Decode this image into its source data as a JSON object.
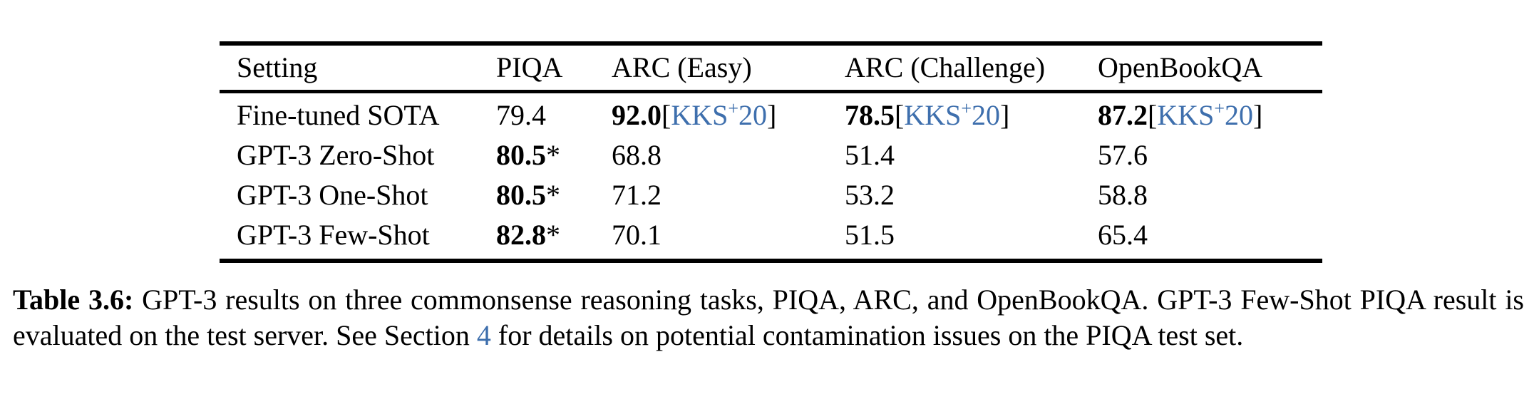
{
  "colors": {
    "text": "#000000",
    "citation_blue": "#3e6fad",
    "rule_black": "#000000",
    "background": "#ffffff"
  },
  "table": {
    "headers": {
      "setting": "Setting",
      "piqa": "PIQA",
      "arc_easy": "ARC (Easy)",
      "arc_challenge": "ARC (Challenge)",
      "openbookqa": "OpenBookQA"
    },
    "symbols": {
      "open_bracket": "[",
      "close_bracket": "]",
      "star": "*"
    },
    "citation": {
      "pre": "KKS",
      "sup": "+",
      "post": "20"
    },
    "rows": [
      {
        "setting": "Fine-tuned SOTA",
        "piqa": "79.4",
        "arc_easy": "92.0",
        "arc_challenge": "78.5",
        "openbookqa": "87.2"
      },
      {
        "setting": "GPT-3 Zero-Shot",
        "piqa": "80.5",
        "arc_easy": "68.8",
        "arc_challenge": "51.4",
        "openbookqa": "57.6"
      },
      {
        "setting": "GPT-3 One-Shot",
        "piqa": "80.5",
        "arc_easy": "71.2",
        "arc_challenge": "53.2",
        "openbookqa": "58.8"
      },
      {
        "setting": "GPT-3 Few-Shot",
        "piqa": "82.8",
        "arc_easy": "70.1",
        "arc_challenge": "51.5",
        "openbookqa": "65.4"
      }
    ]
  },
  "caption": {
    "label": "Table 3.6:",
    "before_link": " GPT-3 results on three commonsense reasoning tasks, PIQA, ARC, and OpenBookQA. GPT-3 Few-Shot PIQA result is evaluated on the test server. See Section ",
    "link": "4",
    "after_link": " for details on potential contamination issues on the PIQA test set."
  }
}
